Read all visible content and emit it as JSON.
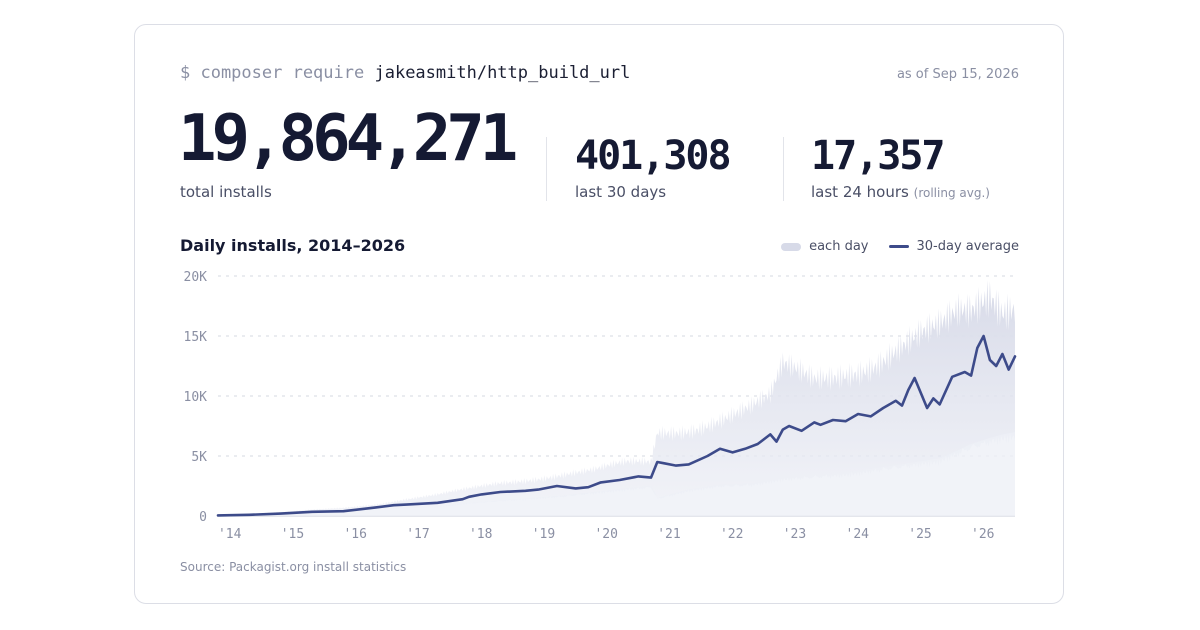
{
  "header": {
    "command_prefix": "$ composer require",
    "package": "jakeasmith/http_build_url",
    "as_of": "as of Sep 15, 2026"
  },
  "stats": {
    "total": {
      "value": "19,864,271",
      "label": "total installs"
    },
    "month": {
      "value": "401,308",
      "label": "last 30 days"
    },
    "day": {
      "value": "17,357",
      "label": "last 24 hours",
      "note": "(rolling avg.)"
    }
  },
  "legend": {
    "each_day": "each day",
    "average": "30-day average"
  },
  "source": "Source: Packagist.org install statistics",
  "colors": {
    "line": "#3d4b8a",
    "area": "#d7dae8",
    "grid": "#d5d8e2"
  },
  "chart_data": {
    "type": "area",
    "title": "Daily installs, 2014–2026",
    "xlabel": "",
    "ylabel": "",
    "ylim": [
      0,
      20000
    ],
    "xlim": [
      2014.0,
      2026.7
    ],
    "yticks": [
      0,
      5000,
      10000,
      15000,
      20000
    ],
    "ytick_labels": [
      "0",
      "5K",
      "10K",
      "15K",
      "20K"
    ],
    "xticks": [
      2014.25,
      2015.25,
      2016.25,
      2017.25,
      2018.25,
      2019.25,
      2020.25,
      2021.25,
      2022.25,
      2023.25,
      2024.25,
      2025.25,
      2026.25
    ],
    "xtick_labels": [
      "'14",
      "'15",
      "'16",
      "'17",
      "'18",
      "'19",
      "'20",
      "'21",
      "'22",
      "'23",
      "'24",
      "'25",
      "'26"
    ],
    "grid": true,
    "legend_position": "top-right",
    "series": [
      {
        "name": "30-day average",
        "x": [
          2014.0,
          2014.5,
          2015.0,
          2015.5,
          2016.0,
          2016.5,
          2016.8,
          2017.0,
          2017.5,
          2017.9,
          2018.0,
          2018.2,
          2018.5,
          2018.9,
          2019.1,
          2019.4,
          2019.7,
          2019.9,
          2020.1,
          2020.4,
          2020.7,
          2020.9,
          2021.0,
          2021.1,
          2021.3,
          2021.5,
          2021.8,
          2022.0,
          2022.2,
          2022.4,
          2022.6,
          2022.8,
          2022.9,
          2023.0,
          2023.1,
          2023.3,
          2023.5,
          2023.6,
          2023.8,
          2024.0,
          2024.2,
          2024.4,
          2024.6,
          2024.8,
          2024.9,
          2025.0,
          2025.1,
          2025.3,
          2025.4,
          2025.5,
          2025.7,
          2025.9,
          2026.0,
          2026.1,
          2026.2,
          2026.3,
          2026.4,
          2026.5,
          2026.6,
          2026.7
        ],
        "values": [
          50,
          100,
          200,
          350,
          400,
          700,
          900,
          950,
          1100,
          1400,
          1600,
          1800,
          2000,
          2100,
          2200,
          2500,
          2300,
          2400,
          2800,
          3000,
          3300,
          3200,
          4500,
          4400,
          4200,
          4300,
          5000,
          5600,
          5300,
          5600,
          6000,
          6800,
          6200,
          7200,
          7500,
          7100,
          7800,
          7600,
          8000,
          7900,
          8500,
          8300,
          9000,
          9600,
          9200,
          10500,
          11500,
          9000,
          9800,
          9300,
          11600,
          12000,
          11700,
          14000,
          15000,
          13000,
          12500,
          13500,
          12200,
          13300
        ]
      }
    ],
    "daily_envelope": {
      "x": [
        2014.0,
        2014.5,
        2015.0,
        2015.5,
        2016.0,
        2016.5,
        2017.0,
        2017.5,
        2018.0,
        2018.5,
        2019.0,
        2019.5,
        2020.0,
        2020.5,
        2020.9,
        2021.0,
        2021.5,
        2022.0,
        2022.5,
        2022.8,
        2023.0,
        2023.5,
        2024.0,
        2024.5,
        2025.0,
        2025.5,
        2025.8,
        2026.0,
        2026.3,
        2026.5,
        2026.7
      ],
      "low": [
        0,
        50,
        150,
        250,
        300,
        550,
        700,
        800,
        1100,
        1300,
        1500,
        1700,
        2000,
        2300,
        2500,
        1500,
        2200,
        2600,
        2700,
        3000,
        3200,
        3400,
        3600,
        4000,
        4400,
        4800,
        5500,
        6000,
        6500,
        6800,
        7000
      ],
      "high": [
        100,
        200,
        300,
        500,
        700,
        1000,
        1400,
        1700,
        2200,
        2800,
        3200,
        3500,
        3700,
        4300,
        4500,
        7000,
        7500,
        8200,
        8800,
        9500,
        12000,
        11500,
        12500,
        13000,
        14000,
        15000,
        16500,
        17000,
        19000,
        18000,
        18500
      ]
    }
  }
}
